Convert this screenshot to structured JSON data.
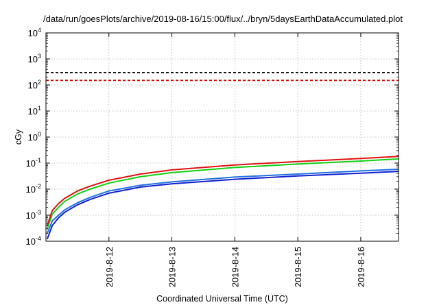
{
  "chart_data": {
    "type": "line",
    "title": "/data/run/goesPlots/archive/2019-08-16/15:00/flux/../bryn/5daysEarthDataAccumulated.plot",
    "xlabel": "Coordinated Universal Time (UTC)",
    "ylabel": "cGy",
    "yscale": "log",
    "ylim": [
      0.0001,
      10000
    ],
    "xlim": [
      0,
      5.6
    ],
    "x_unit": "days since 2019-08-11",
    "grid": true,
    "y_ticks": [
      {
        "base": "10",
        "exp": "4"
      },
      {
        "base": "10",
        "exp": "3"
      },
      {
        "base": "10",
        "exp": "2"
      },
      {
        "base": "10",
        "exp": "1"
      },
      {
        "base": "10",
        "exp": "0"
      },
      {
        "base": "10",
        "exp": "-1"
      },
      {
        "base": "10",
        "exp": "-2"
      },
      {
        "base": "10",
        "exp": "-3"
      },
      {
        "base": "10",
        "exp": "-4"
      }
    ],
    "x_ticks": [
      {
        "x": 1,
        "label": "2019-8-12"
      },
      {
        "x": 2,
        "label": "2019-8-13"
      },
      {
        "x": 3,
        "label": "2019-8-14"
      },
      {
        "x": 4,
        "label": "2019-8-15"
      },
      {
        "x": 5,
        "label": "2019-8-16"
      }
    ],
    "thresholds": [
      {
        "value": 300,
        "color": "#000000",
        "style": "dashed"
      },
      {
        "value": 150,
        "color": "#e00000",
        "style": "dashed"
      }
    ],
    "series": [
      {
        "color": "#e01010",
        "x": [
          0.02,
          0.1,
          0.2,
          0.3,
          0.5,
          0.7,
          1,
          1.5,
          2,
          3,
          4,
          5,
          5.6
        ],
        "values": [
          0.0004,
          0.0015,
          0.0028,
          0.0045,
          0.0085,
          0.013,
          0.022,
          0.038,
          0.055,
          0.085,
          0.115,
          0.15,
          0.18
        ]
      },
      {
        "color": "#10d010",
        "x": [
          0.02,
          0.1,
          0.2,
          0.3,
          0.5,
          0.7,
          1,
          1.5,
          2,
          3,
          4,
          5,
          5.6
        ],
        "values": [
          0.0003,
          0.0011,
          0.002,
          0.0034,
          0.0065,
          0.01,
          0.017,
          0.03,
          0.043,
          0.068,
          0.092,
          0.12,
          0.145
        ]
      },
      {
        "color": "#2070e0",
        "x": [
          0.02,
          0.1,
          0.2,
          0.3,
          0.5,
          0.7,
          1,
          1.5,
          2,
          3,
          4,
          5,
          5.6
        ],
        "values": [
          0.0002,
          0.0006,
          0.001,
          0.0016,
          0.003,
          0.0048,
          0.0085,
          0.014,
          0.019,
          0.029,
          0.038,
          0.05,
          0.058
        ]
      },
      {
        "color": "#1020d0",
        "x": [
          0.02,
          0.1,
          0.2,
          0.3,
          0.5,
          0.7,
          1,
          1.5,
          2,
          3,
          4,
          5,
          5.6
        ],
        "values": [
          0.00012,
          0.0004,
          0.0008,
          0.0013,
          0.0025,
          0.004,
          0.007,
          0.012,
          0.016,
          0.024,
          0.032,
          0.041,
          0.048
        ]
      }
    ]
  }
}
